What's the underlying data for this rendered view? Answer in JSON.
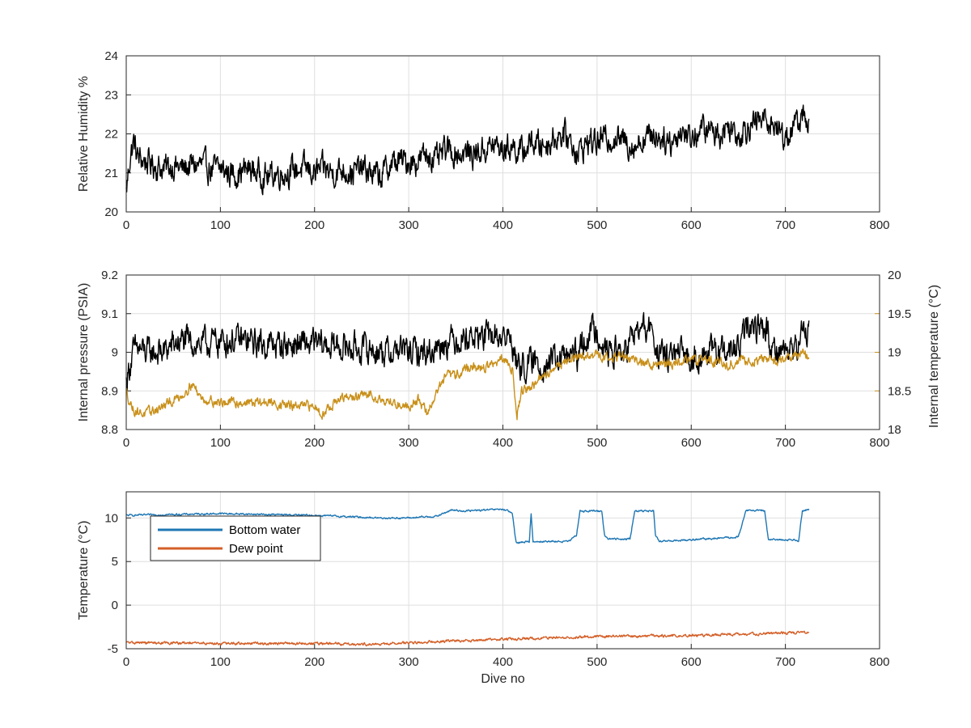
{
  "colors": {
    "black": "#000000",
    "orange": "#C9901A",
    "blue": "#1F77B4",
    "red": "#D35F27",
    "grid": "#dfdfdf",
    "axis": "#262626"
  },
  "chart_data": [
    {
      "type": "line",
      "xlabel": "",
      "ylabel": "Relative Humidity %",
      "xlim": [
        0,
        800
      ],
      "ylim": [
        20,
        24
      ],
      "xticks": [
        "0",
        "100",
        "200",
        "300",
        "400",
        "500",
        "600",
        "700",
        "800"
      ],
      "yticks": [
        "20",
        "21",
        "22",
        "23",
        "24"
      ],
      "grid": true,
      "series": [
        {
          "name": "",
          "color": "#000000",
          "x": [
            0,
            4,
            8,
            12,
            20,
            30,
            40,
            50,
            60,
            70,
            80,
            90,
            100,
            110,
            120,
            130,
            140,
            150,
            160,
            170,
            180,
            190,
            200,
            210,
            220,
            230,
            240,
            250,
            260,
            270,
            280,
            290,
            300,
            310,
            320,
            330,
            340,
            350,
            360,
            370,
            380,
            390,
            400,
            410,
            420,
            430,
            440,
            450,
            460,
            470,
            480,
            490,
            500,
            510,
            520,
            530,
            540,
            550,
            560,
            570,
            580,
            590,
            600,
            610,
            620,
            630,
            640,
            650,
            660,
            670,
            680,
            690,
            700,
            710,
            720,
            725
          ],
          "y": [
            20.5,
            21.4,
            21.8,
            21.4,
            21.3,
            21.2,
            21.1,
            21.2,
            21.1,
            21.2,
            21.2,
            21.1,
            21.1,
            21.0,
            21.0,
            21.1,
            21.0,
            20.9,
            21.0,
            21.0,
            21.1,
            21.1,
            21.0,
            21.1,
            21.0,
            21.1,
            21.0,
            21.1,
            21.0,
            20.9,
            21.2,
            21.3,
            21.3,
            21.3,
            21.5,
            21.3,
            21.6,
            21.5,
            21.5,
            21.5,
            21.6,
            21.7,
            21.6,
            21.7,
            21.5,
            21.8,
            21.7,
            21.8,
            22.0,
            21.9,
            21.5,
            21.8,
            21.8,
            21.9,
            21.9,
            21.8,
            21.7,
            21.9,
            22.0,
            21.9,
            21.8,
            22.1,
            21.9,
            22.1,
            22.1,
            22.0,
            22.2,
            22.0,
            22.2,
            22.3,
            22.4,
            22.2,
            21.9,
            22.2,
            22.5,
            22.3
          ],
          "noise": 0.28
        }
      ]
    },
    {
      "type": "line",
      "xlabel": "",
      "ylabel": "Internal pressure (PSIA)",
      "y2label": "Internal temperature (°C)",
      "xlim": [
        0,
        800
      ],
      "ylim": [
        8.8,
        9.2
      ],
      "y2lim": [
        18,
        20
      ],
      "xticks": [
        "0",
        "100",
        "200",
        "300",
        "400",
        "500",
        "600",
        "700",
        "800"
      ],
      "yticks": [
        "8.8",
        "8.9",
        "9",
        "9.1",
        "9.2"
      ],
      "y2ticks": [
        "18",
        "18.5",
        "19",
        "19.5",
        "20"
      ],
      "grid": true,
      "series": [
        {
          "name": "",
          "axis": "left",
          "color": "#000000",
          "x": [
            0,
            4,
            8,
            12,
            20,
            40,
            50,
            60,
            80,
            100,
            120,
            150,
            200,
            250,
            280,
            290,
            300,
            320,
            340,
            360,
            380,
            400,
            410,
            415,
            430,
            440,
            460,
            470,
            480,
            490,
            500,
            505,
            510,
            530,
            540,
            550,
            560,
            565,
            580,
            600,
            620,
            640,
            650,
            660,
            670,
            680,
            685,
            700,
            710,
            720,
            725
          ],
          "y": [
            8.92,
            8.97,
            9.0,
            9.01,
            9.0,
            9.0,
            9.02,
            9.03,
            9.02,
            9.03,
            9.03,
            9.02,
            9.02,
            9.01,
            9.0,
            9.01,
            9.0,
            9.0,
            9.03,
            9.04,
            9.04,
            9.04,
            9.03,
            8.96,
            8.97,
            8.97,
            8.98,
            8.99,
            8.99,
            9.05,
            9.06,
            9.03,
            9.0,
            9.0,
            9.05,
            9.06,
            9.05,
            8.99,
            8.99,
            8.99,
            9.0,
            9.0,
            9.01,
            9.06,
            9.07,
            9.06,
            9.01,
            9.01,
            9.0,
            9.06,
            9.06
          ],
          "noise": 0.03
        },
        {
          "name": "",
          "axis": "right",
          "color": "#C9901A",
          "x": [
            0,
            4,
            8,
            20,
            40,
            60,
            70,
            80,
            100,
            120,
            150,
            180,
            200,
            210,
            215,
            230,
            260,
            280,
            300,
            310,
            320,
            330,
            340,
            350,
            360,
            380,
            400,
            410,
            415,
            420,
            430,
            440,
            460,
            480,
            500,
            520,
            540,
            560,
            580,
            600,
            620,
            640,
            660,
            680,
            700,
            720,
            725
          ],
          "y": [
            18.5,
            18.35,
            18.25,
            18.2,
            18.3,
            18.45,
            18.6,
            18.4,
            18.35,
            18.35,
            18.35,
            18.3,
            18.3,
            18.2,
            18.3,
            18.4,
            18.45,
            18.35,
            18.3,
            18.4,
            18.2,
            18.5,
            18.7,
            18.7,
            18.8,
            18.8,
            18.9,
            18.8,
            18.2,
            18.5,
            18.55,
            18.65,
            18.85,
            18.95,
            18.95,
            18.95,
            18.9,
            18.85,
            18.85,
            18.9,
            18.9,
            18.85,
            18.9,
            18.9,
            18.9,
            19.0,
            18.9
          ],
          "noise": 0.05
        }
      ]
    },
    {
      "type": "line",
      "xlabel": "Dive no",
      "ylabel": "Temperature (°C)",
      "xlim": [
        0,
        800
      ],
      "ylim": [
        -5,
        13
      ],
      "xticks": [
        "0",
        "100",
        "200",
        "300",
        "400",
        "500",
        "600",
        "700",
        "800"
      ],
      "yticks": [
        "-5",
        "0",
        "5",
        "10"
      ],
      "grid": true,
      "legend": "top-left",
      "series": [
        {
          "name": "Bottom water",
          "color": "#1F77B4",
          "x": [
            0,
            50,
            100,
            200,
            270,
            300,
            330,
            345,
            360,
            380,
            400,
            405,
            410,
            414,
            420,
            428,
            430,
            432,
            440,
            470,
            478,
            482,
            505,
            508,
            512,
            535,
            540,
            560,
            562,
            566,
            650,
            658,
            662,
            678,
            682,
            710,
            714,
            718,
            725
          ],
          "y": [
            10.3,
            10.4,
            10.5,
            10.3,
            10.0,
            10.0,
            10.2,
            10.9,
            10.8,
            10.9,
            11.0,
            10.8,
            10.5,
            7.2,
            7.2,
            7.3,
            10.5,
            7.3,
            7.3,
            7.3,
            8.0,
            10.8,
            10.8,
            8.0,
            7.6,
            7.6,
            10.8,
            10.8,
            8.0,
            7.3,
            7.8,
            10.8,
            10.9,
            10.8,
            7.5,
            7.5,
            7.4,
            10.8,
            11.0
          ],
          "noise": 0.08
        },
        {
          "name": "Dew point",
          "color": "#D35F27",
          "x": [
            0,
            100,
            200,
            270,
            300,
            400,
            500,
            600,
            700,
            725
          ],
          "y": [
            -4.3,
            -4.4,
            -4.4,
            -4.5,
            -4.3,
            -3.9,
            -3.6,
            -3.5,
            -3.2,
            -3.1
          ],
          "noise": 0.12
        }
      ]
    }
  ]
}
